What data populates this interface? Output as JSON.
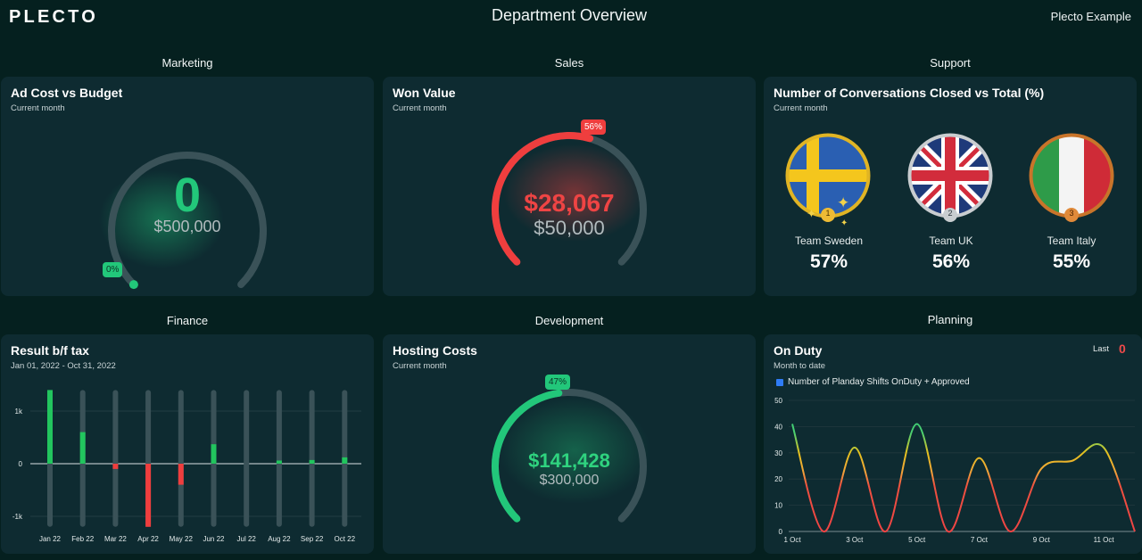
{
  "header": {
    "logo": "PLECTO",
    "title": "Department Overview",
    "account": "Plecto Example"
  },
  "colors": {
    "background": "#05201f",
    "card": "#0e2b31",
    "green": "#22c77a",
    "red": "#ef3e3e",
    "track": "#3a5258",
    "yellow": "#e5c21f"
  },
  "marketing": {
    "section": "Marketing",
    "title": "Ad Cost vs Budget",
    "subtitle": "Current month",
    "value": "0",
    "target": "$500,000",
    "percent_label": "0%",
    "progress": 0
  },
  "sales": {
    "section": "Sales",
    "title": "Won Value",
    "subtitle": "Current month",
    "value": "$28,067",
    "target": "$50,000",
    "percent_label": "56%",
    "progress": 0.56
  },
  "support": {
    "section": "Support",
    "title": "Number of Conversations Closed vs Total (%)",
    "subtitle": "Current month",
    "teams": [
      {
        "name": "Team Sweden",
        "percent": "57%",
        "rank": "1",
        "flag": "sweden-flag"
      },
      {
        "name": "Team UK",
        "percent": "56%",
        "rank": "2",
        "flag": "uk-flag"
      },
      {
        "name": "Team Italy",
        "percent": "55%",
        "rank": "3",
        "flag": "italy-flag"
      }
    ]
  },
  "finance": {
    "section": "Finance",
    "title": "Result b/f tax",
    "subtitle": "Jan 01, 2022 - Oct 31, 2022"
  },
  "development": {
    "section": "Development",
    "title": "Hosting Costs",
    "subtitle": "Current month",
    "value": "$141,428",
    "target": "$300,000",
    "percent_label": "47%",
    "progress": 0.47
  },
  "planning": {
    "section": "Planning",
    "title": "On Duty",
    "subtitle": "Month to date",
    "last_label": "Last",
    "last_value": "0",
    "legend": "Number of Planday Shifts OnDuty + Approved"
  },
  "chart_data": [
    {
      "type": "bar",
      "title": "Result b/f tax",
      "categories": [
        "Jan 22",
        "Feb 22",
        "Mar 22",
        "Apr 22",
        "May 22",
        "Jun 22",
        "Jul 22",
        "Aug 22",
        "Sep 22",
        "Oct 22"
      ],
      "values": [
        1400,
        600,
        -100,
        -1200,
        -400,
        370,
        0,
        60,
        70,
        120
      ],
      "ylim": [
        -1200,
        1400
      ],
      "yticks": [
        {
          "v": 1000,
          "label": "1k"
        },
        {
          "v": 0,
          "label": "0"
        },
        {
          "v": -1000,
          "label": "-1k"
        }
      ],
      "grid": true
    },
    {
      "type": "line",
      "title": "On Duty",
      "series": [
        {
          "name": "Number of Planday Shifts OnDuty + Approved"
        }
      ],
      "points": [
        [
          0,
          41
        ],
        [
          1,
          0
        ],
        [
          2,
          32
        ],
        [
          3,
          0
        ],
        [
          4,
          41
        ],
        [
          5,
          0
        ],
        [
          6,
          28
        ],
        [
          7,
          0
        ],
        [
          8,
          24
        ],
        [
          9,
          27
        ],
        [
          10,
          32
        ],
        [
          11,
          0
        ]
      ],
      "xticks": [
        {
          "v": 0,
          "label": "1 Oct"
        },
        {
          "v": 2,
          "label": "3 Oct"
        },
        {
          "v": 4,
          "label": "5 Oct"
        },
        {
          "v": 6,
          "label": "7 Oct"
        },
        {
          "v": 8,
          "label": "9 Oct"
        },
        {
          "v": 10,
          "label": "11 Oct"
        }
      ],
      "yticks": [
        0,
        10,
        20,
        30,
        40,
        50
      ],
      "ylim": [
        0,
        50
      ],
      "xlim": [
        0,
        11
      ]
    }
  ]
}
